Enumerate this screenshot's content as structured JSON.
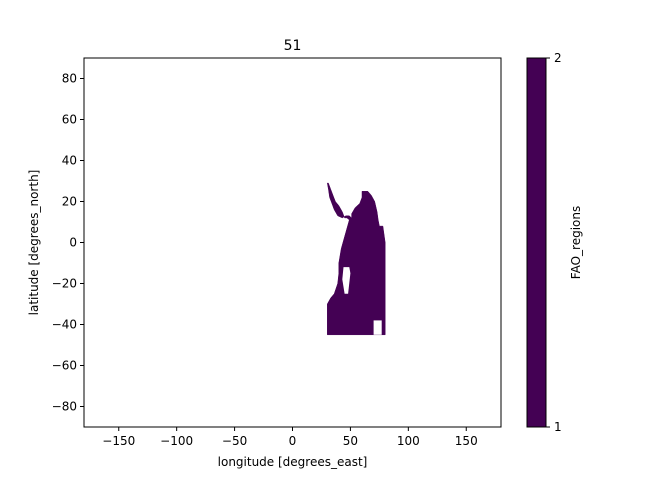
{
  "chart_data": {
    "type": "heatmap",
    "title": "51",
    "xlabel": "longitude [degrees_east]",
    "ylabel": "latitude [degrees_north]",
    "xlim": [
      -180,
      180
    ],
    "ylim": [
      -90,
      90
    ],
    "xticks": [
      -150,
      -100,
      -50,
      0,
      50,
      100,
      150
    ],
    "yticks": [
      -80,
      -60,
      -40,
      -20,
      0,
      20,
      40,
      60,
      80
    ],
    "grid": false,
    "colorbar": {
      "label": "FAO_regions",
      "range": [
        1,
        2
      ],
      "ticks": [
        1,
        2
      ],
      "color": "#440154"
    },
    "region": {
      "name": "51",
      "value": 2,
      "color": "#440154",
      "polygon": [
        [
          30,
          29
        ],
        [
          31,
          26
        ],
        [
          32,
          22
        ],
        [
          34,
          19
        ],
        [
          36,
          16
        ],
        [
          39,
          13
        ],
        [
          43,
          12
        ],
        [
          46,
          13
        ],
        [
          49,
          13
        ],
        [
          51,
          12
        ],
        [
          51,
          14
        ],
        [
          54,
          17
        ],
        [
          58,
          19
        ],
        [
          60,
          22
        ],
        [
          60,
          25
        ],
        [
          65,
          25
        ],
        [
          68,
          23
        ],
        [
          71,
          20
        ],
        [
          73,
          15
        ],
        [
          74,
          11
        ],
        [
          75,
          8
        ],
        [
          78,
          8
        ],
        [
          80,
          0
        ],
        [
          80,
          -45
        ],
        [
          30,
          -45
        ],
        [
          30,
          -30
        ],
        [
          33,
          -27
        ],
        [
          36,
          -25
        ],
        [
          39,
          -20
        ],
        [
          40,
          -15
        ],
        [
          40,
          -10
        ],
        [
          42,
          -3
        ],
        [
          46,
          5
        ],
        [
          49,
          11
        ],
        [
          47,
          12
        ],
        [
          45,
          12
        ],
        [
          43,
          15
        ],
        [
          40,
          18
        ],
        [
          37,
          20
        ],
        [
          35,
          23
        ],
        [
          33,
          26
        ],
        [
          31,
          29
        ]
      ],
      "islands": [
        [
          [
            44,
            -12
          ],
          [
            49,
            -12
          ],
          [
            50,
            -15
          ],
          [
            48,
            -25
          ],
          [
            45,
            -25
          ],
          [
            43,
            -18
          ]
        ],
        [
          [
            40,
            28
          ],
          [
            46,
            25
          ],
          [
            49,
            21
          ],
          [
            48,
            19
          ],
          [
            44,
            22
          ],
          [
            40,
            26
          ]
        ],
        [
          [
            70,
            -38
          ],
          [
            77,
            -38
          ],
          [
            77,
            -45
          ],
          [
            70,
            -45
          ]
        ]
      ]
    }
  }
}
